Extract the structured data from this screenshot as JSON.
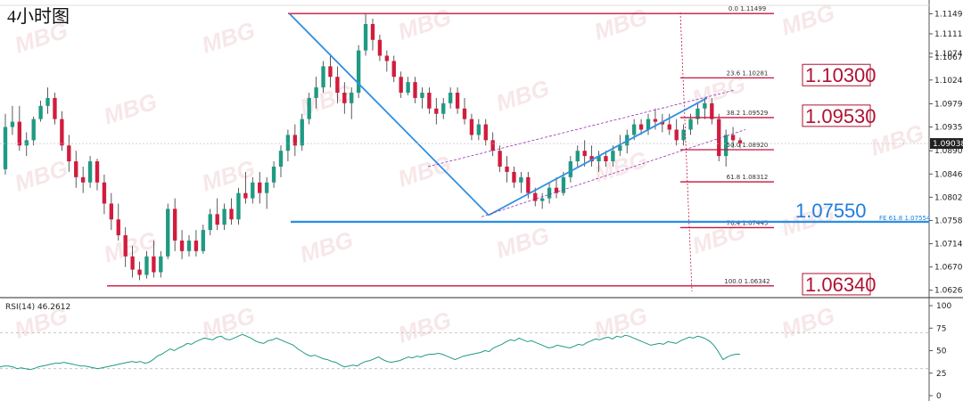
{
  "title": "4小时图",
  "chart_data": [
    {
      "type": "candlestick",
      "title": "4小时图",
      "price_axis_ticks": [
        "1.11495",
        "1.11115",
        "1.10745",
        "1.10675",
        "1.10240",
        "1.09790",
        "1.09350",
        "1.08900",
        "1.08460",
        "1.08020",
        "1.07580",
        "1.07140",
        "1.06700",
        "1.06260"
      ],
      "price_axis_values": [
        1.11495,
        1.11115,
        1.10745,
        1.10675,
        1.1024,
        1.0979,
        1.0935,
        1.089,
        1.0846,
        1.0802,
        1.0758,
        1.0714,
        1.067,
        1.0626
      ],
      "current_price": "1.09038",
      "current_price_value": 1.09038,
      "ylim": [
        1.0617,
        1.1162
      ],
      "candles": [
        [
          1.0855,
          1.096,
          1.0845,
          1.0935
        ],
        [
          1.0935,
          1.0975,
          1.092,
          1.0945
        ],
        [
          1.0945,
          1.0975,
          1.089,
          1.09
        ],
        [
          1.09,
          1.0925,
          1.088,
          1.091
        ],
        [
          1.091,
          1.0955,
          1.09,
          1.095
        ],
        [
          1.095,
          1.0985,
          1.0945,
          1.0975
        ],
        [
          1.0975,
          1.101,
          1.096,
          1.099
        ],
        [
          1.099,
          1.1,
          1.094,
          1.095
        ],
        [
          1.095,
          1.0965,
          1.089,
          1.09
        ],
        [
          1.09,
          1.092,
          1.085,
          1.087
        ],
        [
          1.087,
          1.089,
          1.082,
          1.084
        ],
        [
          1.084,
          1.086,
          1.081,
          1.083
        ],
        [
          1.083,
          1.088,
          1.082,
          1.087
        ],
        [
          1.087,
          1.0875,
          1.0815,
          1.083
        ],
        [
          1.083,
          1.0845,
          1.077,
          1.079
        ],
        [
          1.079,
          1.081,
          1.074,
          1.076
        ],
        [
          1.076,
          1.079,
          1.072,
          1.073
        ],
        [
          1.073,
          1.0745,
          1.067,
          1.069
        ],
        [
          1.069,
          1.071,
          1.065,
          1.0665
        ],
        [
          1.0665,
          1.068,
          1.0645,
          1.0655
        ],
        [
          1.0655,
          1.07,
          1.0648,
          1.069
        ],
        [
          1.069,
          1.072,
          1.065,
          1.066
        ],
        [
          1.066,
          1.07,
          1.065,
          1.069
        ],
        [
          1.069,
          1.079,
          1.0685,
          1.078
        ],
        [
          1.078,
          1.08,
          1.07,
          1.072
        ],
        [
          1.072,
          1.074,
          1.0685,
          1.07
        ],
        [
          1.07,
          1.073,
          1.069,
          1.072
        ],
        [
          1.072,
          1.074,
          1.069,
          1.07
        ],
        [
          1.07,
          1.075,
          1.0695,
          1.074
        ],
        [
          1.074,
          1.078,
          1.073,
          1.077
        ],
        [
          1.077,
          1.08,
          1.074,
          1.075
        ],
        [
          1.075,
          1.079,
          1.074,
          1.078
        ],
        [
          1.078,
          1.08,
          1.075,
          1.076
        ],
        [
          1.076,
          1.082,
          1.075,
          1.081
        ],
        [
          1.081,
          1.085,
          1.079,
          1.08
        ],
        [
          1.08,
          1.084,
          1.079,
          1.083
        ],
        [
          1.083,
          1.085,
          1.079,
          1.081
        ],
        [
          1.081,
          1.084,
          1.078,
          1.083
        ],
        [
          1.083,
          1.087,
          1.082,
          1.086
        ],
        [
          1.086,
          1.09,
          1.084,
          1.089
        ],
        [
          1.089,
          1.093,
          1.087,
          1.092
        ],
        [
          1.092,
          1.094,
          1.088,
          1.09
        ],
        [
          1.09,
          1.096,
          1.089,
          1.095
        ],
        [
          1.095,
          1.1,
          1.094,
          1.099
        ],
        [
          1.099,
          1.103,
          1.097,
          1.101
        ],
        [
          1.101,
          1.106,
          1.1,
          1.105
        ],
        [
          1.105,
          1.107,
          1.101,
          1.103
        ],
        [
          1.103,
          1.105,
          1.098,
          1.1
        ],
        [
          1.1,
          1.102,
          1.096,
          1.098
        ],
        [
          1.098,
          1.101,
          1.095,
          1.1
        ],
        [
          1.1,
          1.109,
          1.099,
          1.108
        ],
        [
          1.108,
          1.1149,
          1.107,
          1.113
        ],
        [
          1.113,
          1.114,
          1.108,
          1.11
        ],
        [
          1.11,
          1.111,
          1.106,
          1.107
        ],
        [
          1.107,
          1.108,
          1.104,
          1.106
        ],
        [
          1.106,
          1.107,
          1.102,
          1.103
        ],
        [
          1.103,
          1.104,
          1.099,
          1.1
        ],
        [
          1.1,
          1.103,
          1.0995,
          1.102
        ],
        [
          1.102,
          1.103,
          1.098,
          1.099
        ],
        [
          1.099,
          1.101,
          1.097,
          1.1
        ],
        [
          1.1,
          1.101,
          1.096,
          1.097
        ],
        [
          1.097,
          1.099,
          1.094,
          1.096
        ],
        [
          1.096,
          1.099,
          1.095,
          1.098
        ],
        [
          1.098,
          1.101,
          1.097,
          1.1
        ],
        [
          1.1,
          1.101,
          1.096,
          1.097
        ],
        [
          1.097,
          1.099,
          1.094,
          1.095
        ],
        [
          1.095,
          1.096,
          1.091,
          1.092
        ],
        [
          1.092,
          1.095,
          1.091,
          1.094
        ],
        [
          1.094,
          1.095,
          1.09,
          1.091
        ],
        [
          1.091,
          1.0925,
          1.088,
          1.089
        ],
        [
          1.089,
          1.09,
          1.085,
          1.086
        ],
        [
          1.086,
          1.088,
          1.083,
          1.085
        ],
        [
          1.085,
          1.086,
          1.082,
          1.083
        ],
        [
          1.083,
          1.085,
          1.081,
          1.084
        ],
        [
          1.084,
          1.085,
          1.08,
          1.081
        ],
        [
          1.081,
          1.082,
          1.0785,
          1.0795
        ],
        [
          1.0795,
          1.081,
          1.078,
          1.08
        ],
        [
          1.08,
          1.083,
          1.079,
          1.082
        ],
        [
          1.082,
          1.084,
          1.08,
          1.081
        ],
        [
          1.081,
          1.085,
          1.0805,
          1.084
        ],
        [
          1.084,
          1.088,
          1.083,
          1.087
        ],
        [
          1.087,
          1.09,
          1.086,
          1.089
        ],
        [
          1.089,
          1.091,
          1.086,
          1.088
        ],
        [
          1.088,
          1.09,
          1.086,
          1.087
        ],
        [
          1.087,
          1.089,
          1.085,
          1.088
        ],
        [
          1.088,
          1.089,
          1.086,
          1.087
        ],
        [
          1.087,
          1.09,
          1.086,
          1.089
        ],
        [
          1.089,
          1.092,
          1.088,
          1.09
        ],
        [
          1.09,
          1.093,
          1.0885,
          1.092
        ],
        [
          1.092,
          1.095,
          1.091,
          1.094
        ],
        [
          1.094,
          1.095,
          1.092,
          1.093
        ],
        [
          1.093,
          1.096,
          1.092,
          1.095
        ],
        [
          1.095,
          1.097,
          1.093,
          1.0945
        ],
        [
          1.0945,
          1.096,
          1.0925,
          1.094
        ],
        [
          1.094,
          1.096,
          1.092,
          1.093
        ],
        [
          1.093,
          1.095,
          1.09,
          1.091
        ],
        [
          1.091,
          1.094,
          1.09,
          1.093
        ],
        [
          1.093,
          1.096,
          1.092,
          1.095
        ],
        [
          1.095,
          1.098,
          1.094,
          1.097
        ],
        [
          1.097,
          1.099,
          1.095,
          1.098
        ],
        [
          1.098,
          1.099,
          1.094,
          1.095
        ],
        [
          1.095,
          1.096,
          1.087,
          1.088
        ],
        [
          1.088,
          1.093,
          1.086,
          1.092
        ],
        [
          1.092,
          1.0935,
          1.0895,
          1.091
        ],
        [
          1.091,
          1.0915,
          1.0895,
          1.0904
        ]
      ],
      "fib_levels": [
        {
          "ratio": "0.0",
          "price": "1.11499"
        },
        {
          "ratio": "23.6",
          "price": "1.10281"
        },
        {
          "ratio": "38.2",
          "price": "1.09529"
        },
        {
          "ratio": "50.0",
          "price": "1.08920"
        },
        {
          "ratio": "61.8",
          "price": "1.08312"
        },
        {
          "ratio": "76.4",
          "price": "1.07445"
        },
        {
          "ratio": "100.0",
          "price": "1.06342"
        }
      ],
      "fib_values": [
        1.11499,
        1.10281,
        1.09529,
        1.0892,
        1.08312,
        1.07445,
        1.06342
      ],
      "fe_label": "FE 61.8",
      "fe_price": "1.07554",
      "fe_value": 1.07554,
      "key_levels": [
        {
          "label": "1.10300",
          "value": 1.103,
          "color": "#b01232"
        },
        {
          "label": "1.09530",
          "value": 1.0953,
          "color": "#b01232"
        },
        {
          "label": "1.07550",
          "value": 1.0755,
          "color": "#1e7ce0"
        },
        {
          "label": "1.06340",
          "value": 1.0634,
          "color": "#b01232"
        }
      ],
      "colors": {
        "bull": "#1f9a83",
        "bear": "#d21c3d",
        "fib": "#c8143c",
        "trend": "#2f8fe0",
        "channel": "#9b2bb3"
      }
    },
    {
      "type": "line",
      "title": "RSI(14) 46.2612",
      "ylim": [
        0,
        100
      ],
      "y_ticks": [
        "100",
        "75",
        "50",
        "25",
        "0"
      ],
      "levels": [
        30,
        70
      ],
      "values": [
        32,
        33,
        33,
        32,
        30,
        31,
        30,
        29,
        30,
        32,
        33,
        34,
        35,
        36,
        36,
        37,
        36,
        35,
        34,
        33,
        33,
        32,
        31,
        30,
        31,
        32,
        33,
        34,
        35,
        36,
        37,
        38,
        37,
        38,
        36,
        37,
        40,
        44,
        46,
        49,
        52,
        50,
        53,
        55,
        58,
        57,
        60,
        62,
        64,
        63,
        62,
        65,
        66,
        63,
        62,
        64,
        66,
        68,
        66,
        64,
        61,
        59,
        58,
        61,
        62,
        64,
        62,
        60,
        58,
        56,
        52,
        49,
        46,
        44,
        45,
        43,
        41,
        40,
        38,
        37,
        34,
        32,
        33,
        34,
        33,
        36,
        38,
        39,
        41,
        43,
        40,
        38,
        37,
        38,
        39,
        41,
        43,
        42,
        44,
        43,
        45,
        46,
        46,
        47,
        46,
        44,
        42,
        40,
        42,
        44,
        45,
        46,
        47,
        48,
        50,
        49,
        53,
        55,
        57,
        60,
        62,
        61,
        64,
        62,
        60,
        61,
        59,
        57,
        55,
        53,
        54,
        56,
        55,
        54,
        53,
        55,
        57,
        56,
        59,
        61,
        63,
        62,
        64,
        65,
        63,
        66,
        65,
        67,
        66,
        64,
        62,
        60,
        58,
        56,
        57,
        58,
        57,
        60,
        59,
        58,
        61,
        63,
        65,
        64,
        66,
        65,
        63,
        60,
        55,
        48,
        40,
        43,
        45,
        46,
        46
      ]
    }
  ],
  "watermark": "MBG"
}
